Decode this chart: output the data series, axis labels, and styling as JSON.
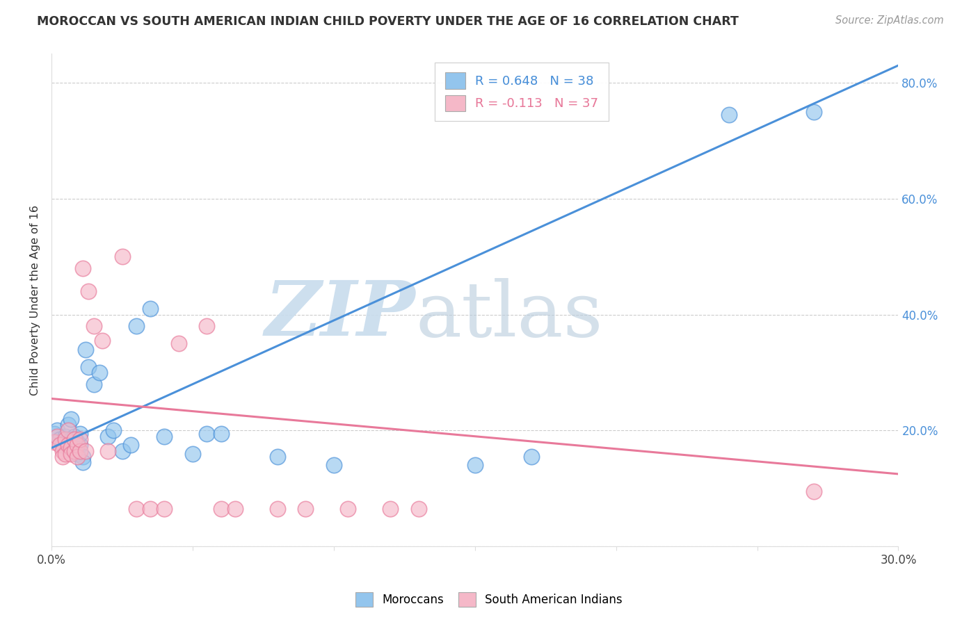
{
  "title": "MOROCCAN VS SOUTH AMERICAN INDIAN CHILD POVERTY UNDER THE AGE OF 16 CORRELATION CHART",
  "source": "Source: ZipAtlas.com",
  "ylabel": "Child Poverty Under the Age of 16",
  "xlim": [
    0.0,
    0.3
  ],
  "ylim": [
    0.0,
    0.85
  ],
  "x_ticks": [
    0.0,
    0.05,
    0.1,
    0.15,
    0.2,
    0.25,
    0.3
  ],
  "x_tick_labels": [
    "0.0%",
    "",
    "",
    "",
    "",
    "",
    "30.0%"
  ],
  "y_ticks": [
    0.0,
    0.2,
    0.4,
    0.6,
    0.8
  ],
  "y_right_labels": [
    "",
    "20.0%",
    "40.0%",
    "60.0%",
    "80.0%"
  ],
  "moroccan_R": 0.648,
  "moroccan_N": 38,
  "sai_R": -0.113,
  "sai_N": 37,
  "moroccan_color": "#93C5ED",
  "sai_color": "#F5B8C8",
  "moroccan_line_color": "#4A90D9",
  "sai_line_color": "#E8799A",
  "grid_color": "#CCCCCC",
  "background_color": "#FFFFFF",
  "moroccan_x": [
    0.001,
    0.002,
    0.003,
    0.004,
    0.005,
    0.005,
    0.006,
    0.006,
    0.007,
    0.007,
    0.008,
    0.008,
    0.009,
    0.009,
    0.01,
    0.01,
    0.011,
    0.011,
    0.012,
    0.013,
    0.015,
    0.017,
    0.02,
    0.022,
    0.025,
    0.028,
    0.03,
    0.035,
    0.04,
    0.05,
    0.055,
    0.06,
    0.08,
    0.1,
    0.15,
    0.17,
    0.24,
    0.27
  ],
  "moroccan_y": [
    0.195,
    0.2,
    0.185,
    0.175,
    0.18,
    0.19,
    0.185,
    0.21,
    0.185,
    0.22,
    0.175,
    0.19,
    0.18,
    0.16,
    0.175,
    0.195,
    0.155,
    0.145,
    0.34,
    0.31,
    0.28,
    0.3,
    0.19,
    0.2,
    0.165,
    0.175,
    0.38,
    0.41,
    0.19,
    0.16,
    0.195,
    0.195,
    0.155,
    0.14,
    0.14,
    0.155,
    0.745,
    0.75
  ],
  "sai_x": [
    0.001,
    0.002,
    0.003,
    0.004,
    0.004,
    0.005,
    0.005,
    0.006,
    0.006,
    0.007,
    0.007,
    0.008,
    0.008,
    0.009,
    0.009,
    0.01,
    0.01,
    0.011,
    0.012,
    0.013,
    0.015,
    0.018,
    0.02,
    0.025,
    0.03,
    0.035,
    0.04,
    0.045,
    0.055,
    0.06,
    0.065,
    0.08,
    0.09,
    0.105,
    0.12,
    0.13,
    0.27
  ],
  "sai_y": [
    0.18,
    0.19,
    0.175,
    0.165,
    0.155,
    0.16,
    0.185,
    0.175,
    0.2,
    0.17,
    0.16,
    0.165,
    0.185,
    0.175,
    0.155,
    0.165,
    0.185,
    0.48,
    0.165,
    0.44,
    0.38,
    0.355,
    0.165,
    0.5,
    0.065,
    0.065,
    0.065,
    0.35,
    0.38,
    0.065,
    0.065,
    0.065,
    0.065,
    0.065,
    0.065,
    0.065,
    0.095
  ],
  "watermark_zip": "ZIP",
  "watermark_atlas": "atlas",
  "moroccan_trendline": [
    [
      0.0,
      0.17
    ],
    [
      0.3,
      0.83
    ]
  ],
  "sai_trendline": [
    [
      0.0,
      0.255
    ],
    [
      0.3,
      0.125
    ]
  ]
}
